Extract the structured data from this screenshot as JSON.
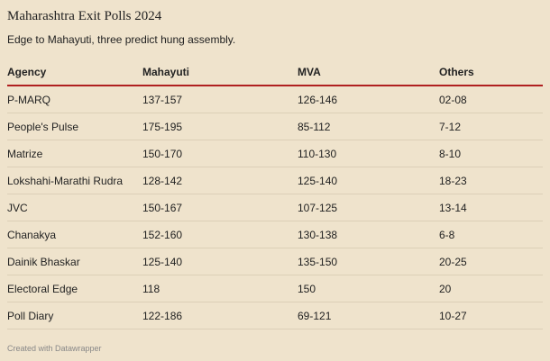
{
  "header": {
    "title": "Maharashtra Exit Polls 2024",
    "subtitle": "Edge to Mahayuti, three predict hung assembly."
  },
  "table": {
    "columns": [
      "Agency",
      "Mahayuti",
      "MVA",
      "Others"
    ],
    "rows": [
      [
        "P-MARQ",
        "137-157",
        "126-146",
        "02-08"
      ],
      [
        "People's Pulse",
        "175-195",
        "85-112",
        "7-12"
      ],
      [
        "Matrize",
        "150-170",
        "110-130",
        "8-10"
      ],
      [
        "Lokshahi-Marathi Rudra",
        "128-142",
        "125-140",
        "18-23"
      ],
      [
        "JVC",
        "150-167",
        "107-125",
        "13-14"
      ],
      [
        "Chanakya",
        "152-160",
        "130-138",
        "6-8"
      ],
      [
        "Dainik Bhaskar",
        "125-140",
        "135-150",
        "20-25"
      ],
      [
        "Electoral Edge",
        "118",
        "150",
        "20"
      ],
      [
        "Poll Diary",
        "122-186",
        "69-121",
        "10-27"
      ]
    ]
  },
  "footer": {
    "credit": "Created with Datawrapper"
  }
}
